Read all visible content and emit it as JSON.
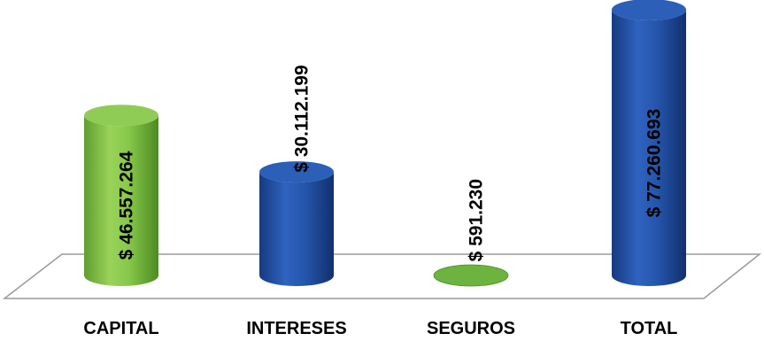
{
  "chart_data": {
    "type": "bar",
    "style": "3d-cylinder",
    "categories": [
      "CAPITAL",
      "INTERESES",
      "SEGUROS",
      "TOTAL"
    ],
    "values": [
      46557264,
      30112199,
      591230,
      77260693
    ],
    "value_labels": [
      "$ 46.557.264",
      "$ 30.112.199",
      "$ 591.230",
      "$ 77.260.693"
    ],
    "bar_colors": [
      "#7cc142",
      "#1f4fa3",
      "#6cb33f",
      "#1f4fa3"
    ],
    "ylim": [
      0,
      77260693
    ],
    "grid": false,
    "legend": "none",
    "title": "",
    "xlabel": "",
    "ylabel": ""
  }
}
